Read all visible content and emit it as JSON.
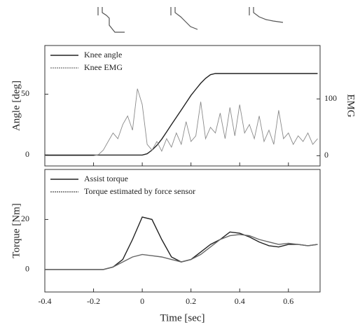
{
  "chart_data": [
    {
      "type": "line",
      "y_label": "Angle [deg]",
      "y2_label": "EMG",
      "x": [
        -0.4,
        -0.38,
        -0.36,
        -0.34,
        -0.32,
        -0.3,
        -0.28,
        -0.26,
        -0.24,
        -0.22,
        -0.2,
        -0.18,
        -0.16,
        -0.14,
        -0.12,
        -0.1,
        -0.08,
        -0.06,
        -0.04,
        -0.02,
        0,
        0.02,
        0.04,
        0.06,
        0.08,
        0.1,
        0.12,
        0.14,
        0.16,
        0.18,
        0.2,
        0.22,
        0.24,
        0.26,
        0.28,
        0.3,
        0.32,
        0.34,
        0.36,
        0.38,
        0.4,
        0.42,
        0.44,
        0.46,
        0.48,
        0.5,
        0.52,
        0.54,
        0.56,
        0.58,
        0.6,
        0.62,
        0.64,
        0.66,
        0.68,
        0.7,
        0.72
      ],
      "xlim": [
        -0.4,
        0.73
      ],
      "ylim": [
        -9,
        90
      ],
      "yticks": [
        0,
        50
      ],
      "y2lim": [
        -18,
        194
      ],
      "y2ticks": [
        0,
        100
      ],
      "series": [
        {
          "name": "Knee angle",
          "color": "#222222",
          "values": [
            0,
            0,
            0,
            0,
            0,
            0,
            0,
            0,
            0,
            0,
            0,
            0,
            0,
            0,
            0,
            0,
            0,
            0,
            0,
            0,
            0,
            1,
            4,
            8,
            13,
            19,
            25,
            31,
            37,
            43,
            49,
            54,
            59,
            63,
            66,
            67,
            67,
            67,
            67,
            67,
            67,
            67,
            67,
            67,
            67,
            67,
            67,
            67,
            67,
            67,
            67,
            67,
            67,
            67,
            67,
            67,
            67
          ]
        },
        {
          "name": "Knee EMG",
          "color": "#8a8a8a",
          "axis": "y2",
          "values": [
            0,
            0,
            0,
            0,
            0,
            0,
            0,
            0,
            0,
            0,
            0,
            2,
            10,
            25,
            40,
            30,
            55,
            70,
            45,
            118,
            90,
            20,
            10,
            25,
            8,
            30,
            15,
            40,
            20,
            60,
            25,
            35,
            95,
            30,
            50,
            40,
            75,
            30,
            85,
            35,
            90,
            40,
            55,
            30,
            70,
            25,
            45,
            20,
            80,
            30,
            40,
            20,
            35,
            25,
            40,
            20,
            30
          ]
        }
      ]
    },
    {
      "type": "line",
      "y_label": "Torque [Nm]",
      "x_label": "Time [sec]",
      "x": [
        -0.4,
        -0.36,
        -0.32,
        -0.28,
        -0.24,
        -0.2,
        -0.16,
        -0.12,
        -0.08,
        -0.04,
        0,
        0.04,
        0.08,
        0.12,
        0.16,
        0.2,
        0.24,
        0.28,
        0.32,
        0.36,
        0.4,
        0.44,
        0.48,
        0.52,
        0.56,
        0.6,
        0.64,
        0.68,
        0.72
      ],
      "xlim": [
        -0.4,
        0.73
      ],
      "xticks": [
        -0.4,
        -0.2,
        0,
        0.2,
        0.4,
        0.6
      ],
      "ylim": [
        -9,
        40
      ],
      "yticks": [
        0,
        20
      ],
      "series": [
        {
          "name": "Assist torque",
          "color": "#222222",
          "values": [
            0,
            0,
            0,
            0,
            0,
            0,
            0,
            1,
            4,
            12,
            21,
            20,
            12,
            5,
            3,
            4,
            7,
            10,
            12,
            15,
            14.5,
            13,
            11,
            9.5,
            9,
            10,
            10,
            9.5,
            10
          ]
        },
        {
          "name": "Torque estimated by force sensor",
          "color": "#666666",
          "values": [
            0,
            0,
            0,
            0,
            0,
            0,
            0,
            1,
            3,
            5,
            6,
            5.5,
            5,
            4,
            3,
            4,
            6,
            9,
            12,
            13.5,
            14,
            13.5,
            12,
            11,
            10,
            10.5,
            10,
            9.5,
            10
          ]
        }
      ]
    }
  ]
}
